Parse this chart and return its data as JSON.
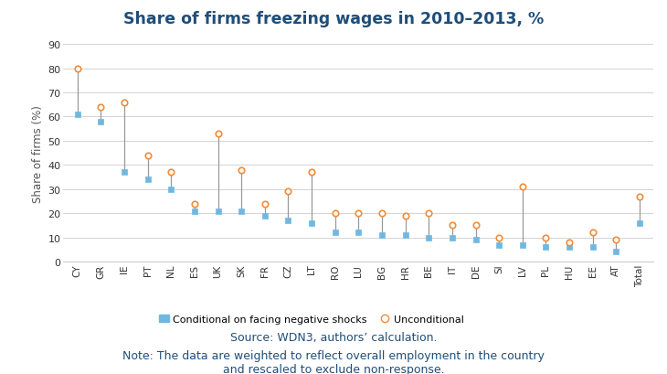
{
  "title": "Share of firms freezing wages in 2010–2013, %",
  "ylabel": "Share of firms (%)",
  "countries": [
    "CY",
    "GR",
    "IE",
    "PT",
    "NL",
    "ES",
    "UK",
    "SK",
    "FR",
    "CZ",
    "LT",
    "RO",
    "LU",
    "BG",
    "HR",
    "BE",
    "IT",
    "DE",
    "SI",
    "LV",
    "PL",
    "HU",
    "EE",
    "AT",
    "Total"
  ],
  "conditional": [
    61,
    58,
    37,
    34,
    30,
    21,
    21,
    21,
    19,
    17,
    16,
    12,
    12,
    11,
    11,
    10,
    10,
    9,
    7,
    7,
    6,
    6,
    6,
    4,
    16
  ],
  "unconditional": [
    80,
    64,
    66,
    44,
    37,
    24,
    53,
    38,
    24,
    29,
    37,
    20,
    20,
    20,
    19,
    20,
    15,
    15,
    10,
    31,
    10,
    8,
    12,
    9,
    27
  ],
  "conditional_color": "#70B8E0",
  "unconditional_color": "#F28C38",
  "line_color": "#999999",
  "background_color": "#ffffff",
  "title_color": "#1F4E79",
  "axis_label_color": "#555555",
  "source_text": "Source: WDN3, authors’ calculation.",
  "note_text": "Note: The data are weighted to reflect overall employment in the country\nand rescaled to exclude non-response.",
  "legend_conditional": "Conditional on facing negative shocks",
  "legend_unconditional": "Unconditional",
  "ylim": [
    0,
    90
  ],
  "yticks": [
    0,
    10,
    20,
    30,
    40,
    50,
    60,
    70,
    80,
    90
  ]
}
